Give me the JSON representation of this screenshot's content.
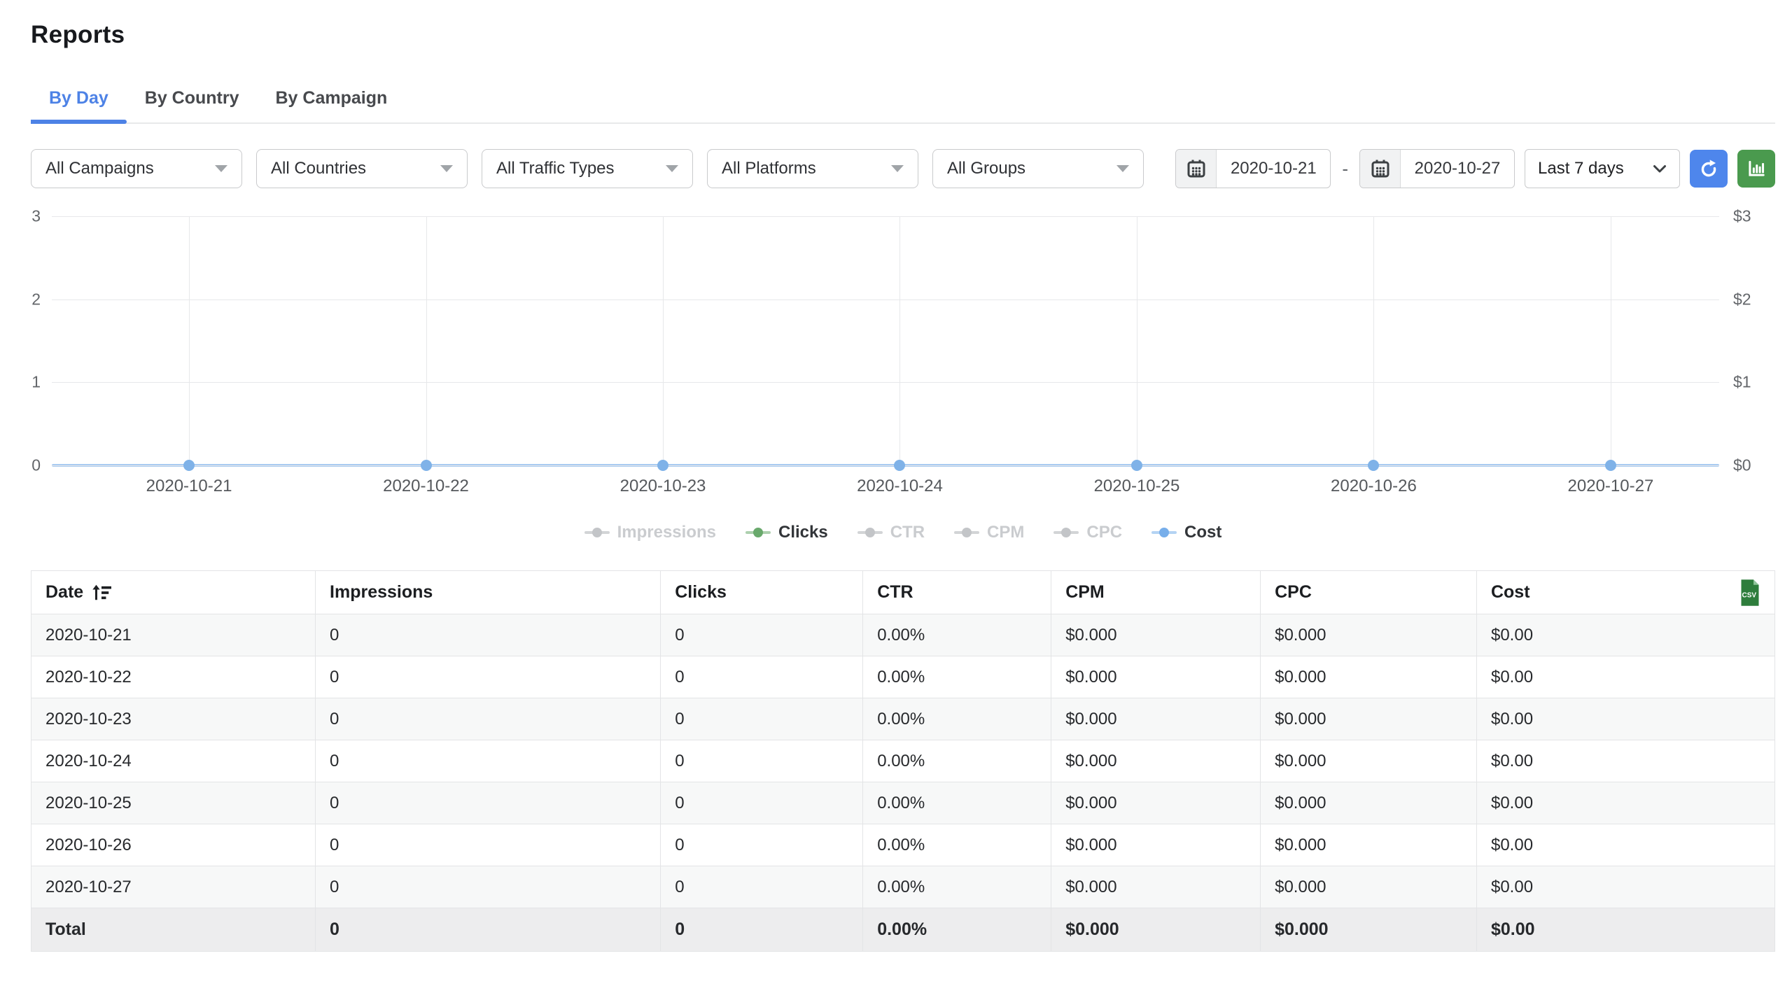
{
  "page": {
    "title": "Reports"
  },
  "tabs": [
    {
      "label": "By Day",
      "active": true
    },
    {
      "label": "By Country",
      "active": false
    },
    {
      "label": "By Campaign",
      "active": false
    }
  ],
  "filters": {
    "dropdowns": [
      {
        "name": "campaigns",
        "value": "All Campaigns"
      },
      {
        "name": "countries",
        "value": "All Countries"
      },
      {
        "name": "traffic-types",
        "value": "All Traffic Types"
      },
      {
        "name": "platforms",
        "value": "All Platforms"
      },
      {
        "name": "groups",
        "value": "All Groups"
      }
    ],
    "date_from": "2020-10-21",
    "date_separator": "-",
    "date_to": "2020-10-27",
    "range_preset": "Last 7 days"
  },
  "chart_data": {
    "type": "line",
    "x": [
      "2020-10-21",
      "2020-10-22",
      "2020-10-23",
      "2020-10-24",
      "2020-10-25",
      "2020-10-26",
      "2020-10-27"
    ],
    "series": [
      {
        "name": "Impressions",
        "values": [
          0,
          0,
          0,
          0,
          0,
          0,
          0
        ],
        "active": false,
        "color": "#c3c5c8"
      },
      {
        "name": "Clicks",
        "values": [
          0,
          0,
          0,
          0,
          0,
          0,
          0
        ],
        "active": true,
        "color": "#69a96c"
      },
      {
        "name": "CTR",
        "values": [
          0,
          0,
          0,
          0,
          0,
          0,
          0
        ],
        "active": false,
        "color": "#c3c5c8"
      },
      {
        "name": "CPM",
        "values": [
          0,
          0,
          0,
          0,
          0,
          0,
          0
        ],
        "active": false,
        "color": "#c3c5c8"
      },
      {
        "name": "CPC",
        "values": [
          0,
          0,
          0,
          0,
          0,
          0,
          0
        ],
        "active": false,
        "color": "#c3c5c8"
      },
      {
        "name": "Cost",
        "values": [
          0,
          0,
          0,
          0,
          0,
          0,
          0
        ],
        "active": true,
        "color": "#77aeea"
      }
    ],
    "y_left": {
      "ticks": [
        "3",
        "2",
        "1",
        "0"
      ],
      "min": 0,
      "max": 3
    },
    "y_right": {
      "ticks": [
        "$3",
        "$2",
        "$1",
        "$0"
      ]
    },
    "grid": true,
    "legend_position": "bottom",
    "line_color": "#a9cbf1",
    "point_color": "#7fb2e8"
  },
  "table": {
    "columns": [
      "Date",
      "Impressions",
      "Clicks",
      "CTR",
      "CPM",
      "CPC",
      "Cost"
    ],
    "sorted_column": "Date",
    "rows": [
      [
        "2020-10-21",
        "0",
        "0",
        "0.00%",
        "$0.000",
        "$0.000",
        "$0.00"
      ],
      [
        "2020-10-22",
        "0",
        "0",
        "0.00%",
        "$0.000",
        "$0.000",
        "$0.00"
      ],
      [
        "2020-10-23",
        "0",
        "0",
        "0.00%",
        "$0.000",
        "$0.000",
        "$0.00"
      ],
      [
        "2020-10-24",
        "0",
        "0",
        "0.00%",
        "$0.000",
        "$0.000",
        "$0.00"
      ],
      [
        "2020-10-25",
        "0",
        "0",
        "0.00%",
        "$0.000",
        "$0.000",
        "$0.00"
      ],
      [
        "2020-10-26",
        "0",
        "0",
        "0.00%",
        "$0.000",
        "$0.000",
        "$0.00"
      ],
      [
        "2020-10-27",
        "0",
        "0",
        "0.00%",
        "$0.000",
        "$0.000",
        "$0.00"
      ]
    ],
    "total": [
      "Total",
      "0",
      "0",
      "0.00%",
      "$0.000",
      "$0.000",
      "$0.00"
    ]
  },
  "icons": {
    "dropdown": "caret-down-icon",
    "date": "calendar-icon",
    "preset": "chevron-down-icon",
    "refresh": "refresh-icon",
    "chart_toggle": "bar-chart-icon",
    "sort": "sort-ascending-icon",
    "export": "csv-export-icon"
  },
  "colors": {
    "accent_blue": "#4d82e6",
    "refresh_button_blue": "#4e86ec",
    "chart_button_green": "#4a9a4e",
    "csv_icon_green": "#2e7d3c",
    "chart_line_blue": "#a9cbf1",
    "chart_point_blue": "#7fb2e8",
    "row_stripe": "#f7f8f8",
    "total_row": "#ededee"
  }
}
